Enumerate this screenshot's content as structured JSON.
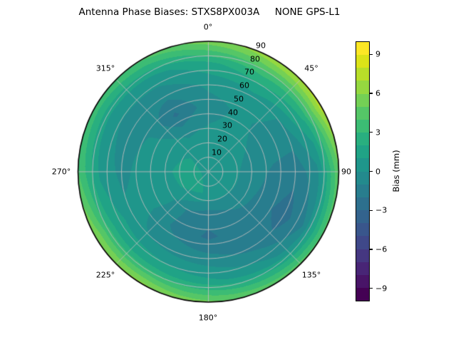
{
  "title": "Antenna Phase Biases: STXS8PX003A     NONE GPS-L1",
  "polar_axis": {
    "theta_labels": [
      "0°",
      "45°",
      "90",
      "135°",
      "180°",
      "225°",
      "270°",
      "315°"
    ],
    "r_labels": [
      "10",
      "20",
      "30",
      "40",
      "50",
      "60",
      "70",
      "80",
      "90"
    ],
    "grid_color": "#bcbcbc",
    "outline_color": "#000000"
  },
  "colorbar": {
    "label": "Bias (mm)",
    "vmin": -10,
    "vmax": 10,
    "ticks": [
      {
        "value": 9,
        "label": "9"
      },
      {
        "value": 6,
        "label": "6"
      },
      {
        "value": 3,
        "label": "3"
      },
      {
        "value": 0,
        "label": "0"
      },
      {
        "value": -3,
        "label": "−3"
      },
      {
        "value": -6,
        "label": "−6"
      },
      {
        "value": -9,
        "label": "−9"
      }
    ],
    "band_colors": [
      "#440154",
      "#481467",
      "#482576",
      "#453781",
      "#3f4889",
      "#39568c",
      "#33638d",
      "#2d708e",
      "#287d8e",
      "#238a8d",
      "#1f968b",
      "#20a386",
      "#29af7f",
      "#3cbc74",
      "#55c667",
      "#74d055",
      "#95d840",
      "#b8de29",
      "#dce318",
      "#fde725"
    ]
  },
  "chart_data": {
    "type": "heatmap",
    "projection": "polar",
    "title": "Antenna Phase Biases: STXS8PX003A     NONE GPS-L1",
    "colorbar_label": "Bias (mm)",
    "units": "mm",
    "vmin": -10,
    "vmax": 10,
    "level_step": 1,
    "theta_zero_location": "N",
    "theta_direction": "clockwise",
    "azimuth_deg": [
      0,
      30,
      60,
      90,
      120,
      150,
      180,
      210,
      240,
      270,
      300,
      330
    ],
    "zenith_deg": [
      0,
      15,
      30,
      45,
      60,
      75,
      90
    ],
    "bias_mm": [
      [
        0.8,
        0.8,
        0.8,
        0.8,
        0.8,
        0.8,
        0.8,
        0.8,
        0.8,
        0.8,
        0.8,
        0.8
      ],
      [
        0.5,
        0.4,
        0.3,
        0.3,
        0.4,
        0.5,
        0.8,
        1.2,
        1.4,
        1.4,
        1.1,
        0.7
      ],
      [
        0.1,
        0.2,
        0.0,
        -0.4,
        -0.6,
        -1.0,
        -1.6,
        -1.0,
        0.5,
        0.8,
        0.6,
        -0.2
      ],
      [
        -0.4,
        0.2,
        -0.3,
        -1.2,
        -1.7,
        -1.5,
        -2.2,
        -1.3,
        0.2,
        0.4,
        0.1,
        -2.2
      ],
      [
        0.2,
        0.6,
        -0.2,
        -1.7,
        -2.5,
        -1.3,
        -0.6,
        -0.2,
        0.3,
        -0.3,
        -0.5,
        -0.7
      ],
      [
        1.8,
        2.8,
        2.2,
        -0.3,
        -1.0,
        0.4,
        1.2,
        1.8,
        2.0,
        0.8,
        0.3,
        0.6
      ],
      [
        5.6,
        6.8,
        7.6,
        4.9,
        4.3,
        4.7,
        5.3,
        6.3,
        6.1,
        4.1,
        3.7,
        4.2
      ]
    ]
  }
}
